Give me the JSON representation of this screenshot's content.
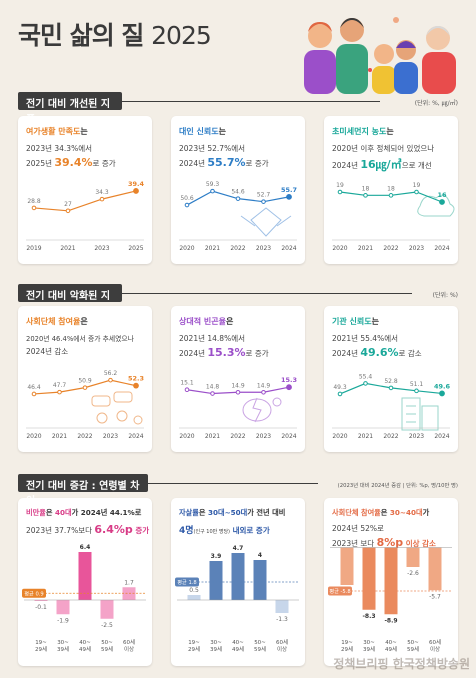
{
  "page": {
    "title_main": "국민 삶의 질",
    "title_year": "2025",
    "watermark": "정책브리핑 한국정책방송원"
  },
  "sections": {
    "improved": {
      "label": "전기 대비 개선된 지표",
      "unit": "(단위: %, ㎍/㎥)"
    },
    "worsened": {
      "label": "전기 대비 악화된 지표",
      "unit": "(단위: %)"
    },
    "agegroup": {
      "label": "전기 대비 증감 : 연령별 차이",
      "unit": "(2023년 대비 2024년 증감 | 단위: %p, 명/10만 명)"
    }
  },
  "colors": {
    "orange": "#e8832a",
    "blue": "#2d7dc6",
    "teal": "#1aa89a",
    "purple": "#9b4fc9",
    "pink": "#f4a3c8",
    "pink_strong": "#e8559a",
    "navy": "#5b82b8",
    "navy_light": "#c7d6ea",
    "salmon": "#f0a884",
    "salmon_strong": "#ea8a5e"
  },
  "cards": {
    "leisure": {
      "head_a": "여가생활 만족도",
      "head_b": "는",
      "line1": "2023년 34.3%에서",
      "line2_a": "2025년 ",
      "line2_big": "39.4%",
      "line2_b": "로 증가"
    },
    "trust": {
      "head_a": "대인 신뢰도",
      "head_b": "는",
      "line1": "2023년 52.7%에서",
      "line2_a": "2024년 ",
      "line2_big": "55.7%",
      "line2_b": "로 증가"
    },
    "dust": {
      "head_a": "초미세먼지 농도",
      "head_b": "는",
      "line1": "2020년 이후 정체되어 있었으나",
      "line2_a": "2024년 ",
      "line2_big": "16㎍/㎥",
      "line2_b": "으로 개선"
    },
    "group": {
      "head_a": "사회단체 참여율",
      "head_b": "은",
      "line1": "2020년 46.4%에서 증가 추세였으나",
      "line2_a": "2024년 감소",
      "line2_big": "",
      "line2_b": ""
    },
    "poverty": {
      "head_a": "상대적 빈곤율",
      "head_b": "은",
      "line1": "2021년 14.8%에서",
      "line2_a": "2024년 ",
      "line2_big": "15.3%",
      "line2_b": "로 증가"
    },
    "institution": {
      "head_a": "기관 신뢰도",
      "head_b": "는",
      "line1": "2021년 55.4%에서",
      "line2_a": "2024년 ",
      "line2_big": "49.6%",
      "line2_b": "로 감소"
    },
    "pessimism": {
      "head_a": "비만율",
      "head_b": "은 ",
      "head_c": "40대",
      "head_d": "가 2024년 44.1%로",
      "line1": "",
      "line2_a": "2023년 37.7%보다 ",
      "line2_big": "6.4%p",
      "line2_b": " 증가"
    },
    "suicide": {
      "head_a": "자살률",
      "head_b": "은 ",
      "head_c": "30대~50대",
      "head_d": "가 전년 대비",
      "line1": "",
      "line2_a": "4명",
      "line2_small": "(인구 10만 명당)",
      "line2_b": " 내외로 증가"
    },
    "groupage": {
      "head_a": "사회단체 참여율",
      "head_b": "은 ",
      "head_c": "30~40대",
      "head_d": "가",
      "line1": "2024년 52%로",
      "line2_a": "2023년 보다 ",
      "line2_big": "8%p",
      "line2_b": " 이상 감소"
    }
  },
  "chart_data": [
    {
      "id": "leisure",
      "type": "line",
      "x": [
        "2019",
        "2021",
        "2023",
        "2025"
      ],
      "values": [
        28.8,
        27.0,
        34.3,
        39.4
      ],
      "ylim": [
        20,
        45
      ]
    },
    {
      "id": "trust",
      "type": "line",
      "x": [
        "2020",
        "2021",
        "2022",
        "2023",
        "2024"
      ],
      "values": [
        50.6,
        59.3,
        54.6,
        52.7,
        55.7
      ],
      "ylim": [
        40,
        65
      ]
    },
    {
      "id": "dust",
      "type": "line",
      "x": [
        "2020",
        "2021",
        "2022",
        "2023",
        "2024"
      ],
      "values": [
        19,
        18,
        18,
        19,
        16
      ],
      "ylim": [
        10,
        22
      ]
    },
    {
      "id": "group",
      "type": "line",
      "x": [
        "2020",
        "2021",
        "2022",
        "2023",
        "2024"
      ],
      "values": [
        46.4,
        47.7,
        50.9,
        56.2,
        52.3
      ],
      "ylim": [
        35,
        62
      ]
    },
    {
      "id": "poverty",
      "type": "line",
      "x": [
        "2020",
        "2021",
        "2022",
        "2023",
        "2024"
      ],
      "values": [
        15.1,
        14.8,
        14.9,
        14.9,
        15.3
      ],
      "ylim": [
        13.5,
        16.5
      ]
    },
    {
      "id": "institution",
      "type": "line",
      "x": [
        "2020",
        "2021",
        "2022",
        "2023",
        "2024"
      ],
      "values": [
        49.3,
        55.4,
        52.8,
        51.1,
        49.6
      ],
      "ylim": [
        40,
        62
      ]
    },
    {
      "id": "pessimism",
      "type": "bar",
      "categories": [
        "19~\n29세",
        "30~\n39세",
        "40~\n49세",
        "50~\n59세",
        "60세\n이상"
      ],
      "values": [
        -0.1,
        -1.9,
        6.4,
        -2.5,
        1.7
      ],
      "average": 0.9,
      "average_label": "평균 0.9",
      "ylim": [
        -4,
        8
      ]
    },
    {
      "id": "suicide",
      "type": "bar",
      "categories": [
        "19~\n29세",
        "30~\n39세",
        "40~\n49세",
        "50~\n59세",
        "60세\n이상"
      ],
      "values": [
        0.5,
        3.9,
        4.7,
        4.0,
        -1.3
      ],
      "average": 1.8,
      "average_label": "평균 1.8",
      "ylim": [
        -3,
        6
      ]
    },
    {
      "id": "groupage",
      "type": "bar",
      "categories": [
        "19~\n29세",
        "30~\n39세",
        "40~\n49세",
        "50~\n59세",
        "60세\n이상"
      ],
      "values": [
        -5.0,
        -8.3,
        -8.9,
        -2.6,
        -5.7
      ],
      "average": -5.8,
      "average_label": "평균 -5.8",
      "ylim": [
        -11,
        1
      ]
    }
  ]
}
